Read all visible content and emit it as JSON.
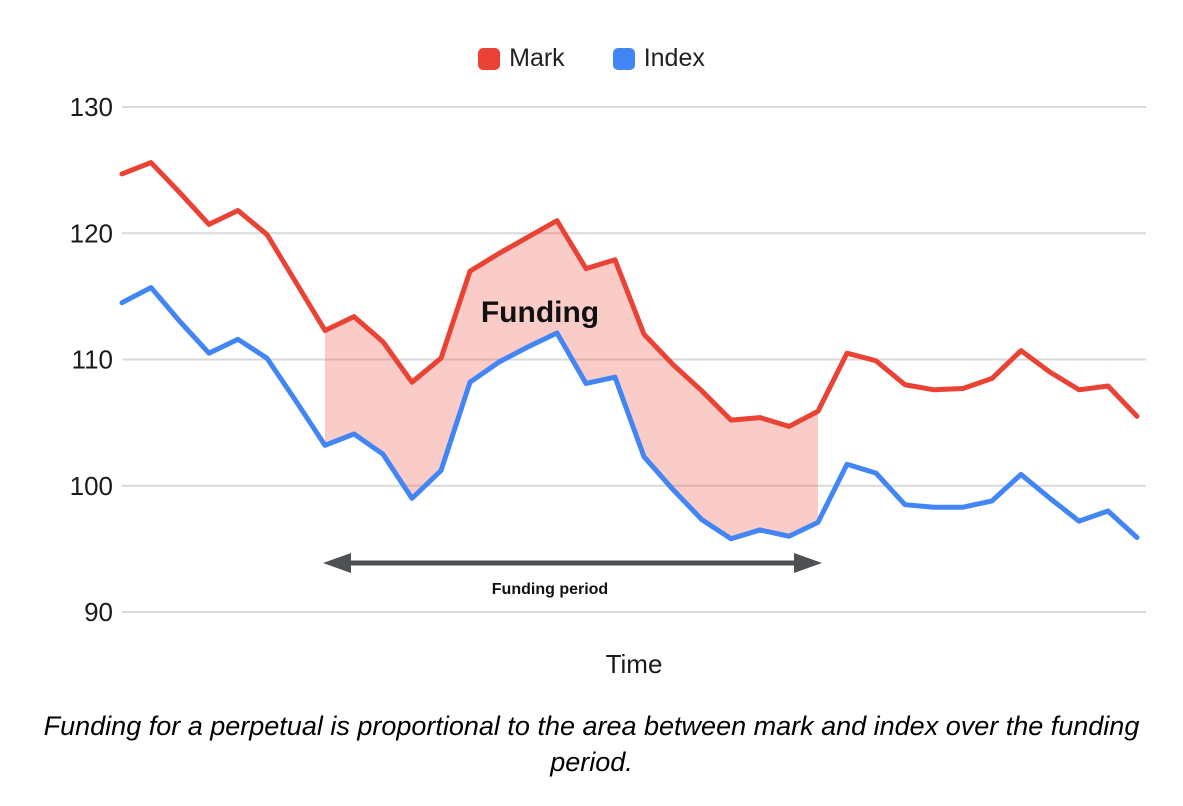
{
  "chart_data": {
    "type": "line",
    "title": "",
    "xlabel": "Time",
    "ylabel": "",
    "ylim": [
      90,
      130
    ],
    "yticks": [
      90,
      100,
      110,
      120,
      130
    ],
    "x_points": 36,
    "grid": "horizontal",
    "legend_position": "top",
    "series": [
      {
        "name": "Mark",
        "color": "#ea4335",
        "values": [
          124.7,
          125.6,
          123.2,
          120.7,
          121.8,
          119.9,
          116.1,
          112.3,
          113.4,
          111.4,
          108.2,
          110.1,
          117.0,
          118.4,
          119.7,
          121.0,
          117.2,
          117.9,
          112.0,
          109.6,
          107.5,
          105.2,
          105.4,
          104.7,
          105.9,
          110.5,
          109.9,
          108.0,
          107.6,
          107.7,
          108.5,
          110.7,
          109.0,
          107.6,
          107.9,
          105.5
        ]
      },
      {
        "name": "Index",
        "color": "#4285f4",
        "values": [
          114.5,
          115.7,
          113.0,
          110.5,
          111.6,
          110.1,
          106.7,
          103.2,
          104.1,
          102.5,
          99.0,
          101.2,
          108.2,
          109.8,
          111.0,
          112.1,
          108.1,
          108.6,
          102.3,
          99.7,
          97.3,
          95.8,
          96.5,
          96.0,
          97.1,
          101.7,
          101.0,
          98.5,
          98.3,
          98.3,
          98.8,
          100.9,
          99.0,
          97.2,
          98.0,
          95.9
        ]
      }
    ],
    "annotations": {
      "funding_area": {
        "label": "Funding",
        "between": [
          "Mark",
          "Index"
        ],
        "from_index": 7,
        "to_index": 24,
        "fill": "rgba(234,67,53,0.27)"
      },
      "funding_period": {
        "label": "Funding period",
        "from_index": 7,
        "to_index": 24
      }
    }
  },
  "colors": {
    "grid": "#d9d9d9",
    "axis_text": "#1a1a1a",
    "arrow": "#4d5156",
    "annotation_text": "#111111"
  },
  "caption": "Funding for a perpetual is proportional to the area between mark and index over the funding period."
}
